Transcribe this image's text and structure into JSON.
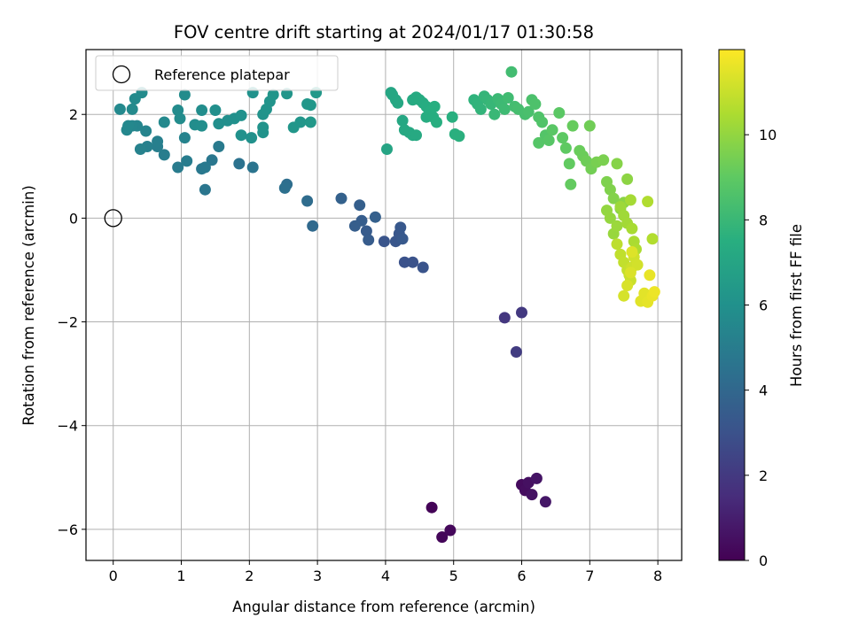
{
  "chart_data": {
    "type": "scatter",
    "title": "FOV centre drift starting at 2024/01/17 01:30:58",
    "xlabel": "Angular distance from reference (arcmin)",
    "ylabel": "Rotation from reference (arcmin)",
    "xlim": [
      -0.4,
      8.35
    ],
    "ylim": [
      -6.6,
      3.25
    ],
    "xticks": [
      0,
      1,
      2,
      3,
      4,
      5,
      6,
      7,
      8
    ],
    "yticks": [
      -6,
      -4,
      -2,
      0,
      2
    ],
    "grid": true,
    "legend": {
      "placement": "top-left",
      "entries": [
        "Reference platepar"
      ]
    },
    "reference_point": {
      "x": 0,
      "y": 0
    },
    "colorbar": {
      "label": "Hours from first FF file",
      "colormap": "viridis",
      "range": [
        0,
        12
      ],
      "ticks": [
        0,
        2,
        4,
        6,
        8,
        10
      ]
    },
    "columns": [
      "x",
      "y",
      "hours"
    ],
    "points": [
      [
        4.68,
        -5.58,
        0.1
      ],
      [
        4.83,
        -6.15,
        0.18
      ],
      [
        4.95,
        -6.02,
        0.25
      ],
      [
        6.0,
        -5.14,
        0.35
      ],
      [
        6.05,
        -5.25,
        0.42
      ],
      [
        6.1,
        -5.1,
        0.5
      ],
      [
        6.15,
        -5.33,
        0.58
      ],
      [
        6.22,
        -5.02,
        0.66
      ],
      [
        6.35,
        -5.47,
        0.74
      ],
      [
        5.75,
        -1.92,
        1.9
      ],
      [
        6.0,
        -1.82,
        2.0
      ],
      [
        5.92,
        -2.58,
        2.1
      ],
      [
        4.28,
        -0.85,
        3.0
      ],
      [
        4.4,
        -0.85,
        3.05
      ],
      [
        4.55,
        -0.95,
        3.1
      ],
      [
        3.98,
        -0.45,
        3.15
      ],
      [
        4.15,
        -0.45,
        3.2
      ],
      [
        4.2,
        -0.3,
        3.25
      ],
      [
        4.22,
        -0.18,
        3.3
      ],
      [
        4.25,
        -0.4,
        3.35
      ],
      [
        3.72,
        -0.25,
        3.4
      ],
      [
        3.75,
        -0.42,
        3.45
      ],
      [
        3.65,
        -0.05,
        3.5
      ],
      [
        3.55,
        -0.15,
        3.55
      ],
      [
        3.62,
        0.25,
        3.6
      ],
      [
        3.85,
        0.02,
        3.65
      ],
      [
        3.35,
        0.38,
        3.7
      ],
      [
        2.93,
        -0.15,
        4.1
      ],
      [
        2.85,
        0.33,
        4.2
      ],
      [
        2.55,
        0.65,
        4.3
      ],
      [
        2.52,
        0.58,
        4.4
      ],
      [
        1.85,
        1.05,
        4.5
      ],
      [
        2.05,
        0.98,
        4.6
      ],
      [
        1.35,
        0.55,
        4.7
      ],
      [
        1.45,
        1.12,
        4.75
      ],
      [
        1.3,
        0.95,
        4.8
      ],
      [
        1.35,
        0.98,
        4.85
      ],
      [
        1.55,
        1.38,
        4.9
      ],
      [
        0.95,
        0.98,
        4.95
      ],
      [
        1.08,
        1.1,
        5.0
      ],
      [
        0.75,
        1.22,
        5.05
      ],
      [
        0.65,
        1.38,
        5.1
      ],
      [
        0.65,
        1.48,
        5.15
      ],
      [
        0.5,
        1.38,
        5.2
      ],
      [
        0.4,
        1.33,
        5.25
      ],
      [
        1.05,
        1.55,
        5.3
      ],
      [
        0.48,
        1.68,
        5.35
      ],
      [
        0.35,
        1.78,
        5.4
      ],
      [
        0.28,
        1.78,
        5.45
      ],
      [
        0.2,
        1.7,
        5.5
      ],
      [
        0.22,
        1.78,
        5.55
      ],
      [
        0.75,
        1.85,
        5.6
      ],
      [
        0.1,
        2.1,
        5.62
      ],
      [
        0.28,
        2.1,
        5.65
      ],
      [
        0.32,
        2.3,
        5.68
      ],
      [
        0.42,
        2.42,
        5.7
      ],
      [
        0.95,
        2.08,
        5.72
      ],
      [
        0.98,
        1.92,
        5.75
      ],
      [
        1.05,
        2.38,
        5.78
      ],
      [
        1.3,
        2.08,
        5.8
      ],
      [
        1.2,
        1.8,
        5.82
      ],
      [
        1.3,
        1.78,
        5.85
      ],
      [
        1.5,
        2.08,
        5.88
      ],
      [
        1.55,
        1.82,
        5.9
      ],
      [
        1.68,
        1.88,
        5.92
      ],
      [
        1.78,
        1.92,
        5.95
      ],
      [
        1.88,
        1.98,
        5.98
      ],
      [
        1.88,
        1.6,
        6.0
      ],
      [
        2.03,
        1.55,
        6.02
      ],
      [
        2.05,
        2.42,
        6.05
      ],
      [
        2.2,
        1.65,
        6.08
      ],
      [
        2.2,
        1.75,
        6.1
      ],
      [
        2.2,
        2.0,
        6.12
      ],
      [
        2.25,
        2.1,
        6.15
      ],
      [
        2.3,
        2.25,
        6.18
      ],
      [
        2.35,
        2.38,
        6.2
      ],
      [
        2.55,
        2.4,
        6.22
      ],
      [
        2.65,
        1.75,
        6.25
      ],
      [
        2.75,
        1.85,
        6.28
      ],
      [
        2.85,
        2.2,
        6.3
      ],
      [
        2.9,
        2.18,
        6.32
      ],
      [
        2.9,
        1.85,
        6.35
      ],
      [
        2.98,
        2.42,
        6.38
      ],
      [
        4.02,
        1.33,
        7.0
      ],
      [
        4.08,
        2.42,
        7.05
      ],
      [
        4.1,
        2.38,
        7.08
      ],
      [
        4.15,
        2.28,
        7.1
      ],
      [
        4.18,
        2.22,
        7.13
      ],
      [
        4.25,
        1.88,
        7.15
      ],
      [
        4.28,
        1.7,
        7.18
      ],
      [
        4.35,
        1.65,
        7.2
      ],
      [
        4.4,
        1.6,
        7.23
      ],
      [
        4.45,
        1.6,
        7.25
      ],
      [
        4.4,
        2.28,
        7.28
      ],
      [
        4.45,
        2.33,
        7.3
      ],
      [
        4.5,
        2.28,
        7.33
      ],
      [
        4.55,
        2.22,
        7.35
      ],
      [
        4.6,
        2.15,
        7.38
      ],
      [
        4.6,
        1.95,
        7.4
      ],
      [
        4.65,
        2.05,
        7.43
      ],
      [
        4.7,
        1.95,
        7.45
      ],
      [
        4.72,
        2.15,
        7.48
      ],
      [
        4.75,
        1.85,
        7.5
      ],
      [
        4.98,
        1.95,
        7.53
      ],
      [
        5.02,
        1.62,
        7.55
      ],
      [
        5.08,
        1.58,
        7.58
      ],
      [
        5.3,
        2.28,
        7.7
      ],
      [
        5.35,
        2.2,
        7.75
      ],
      [
        5.4,
        2.1,
        7.8
      ],
      [
        5.45,
        2.35,
        7.85
      ],
      [
        5.5,
        2.28,
        7.9
      ],
      [
        5.55,
        2.2,
        7.95
      ],
      [
        5.6,
        2.0,
        8.0
      ],
      [
        5.65,
        2.3,
        8.05
      ],
      [
        5.7,
        2.2,
        8.1
      ],
      [
        5.75,
        2.1,
        8.15
      ],
      [
        5.8,
        2.32,
        8.2
      ],
      [
        5.85,
        2.82,
        8.25
      ],
      [
        5.9,
        2.15,
        8.3
      ],
      [
        5.95,
        2.1,
        8.35
      ],
      [
        6.05,
        2.0,
        8.4
      ],
      [
        6.1,
        2.05,
        8.45
      ],
      [
        6.15,
        2.28,
        8.5
      ],
      [
        6.2,
        2.2,
        8.55
      ],
      [
        6.25,
        1.95,
        8.6
      ],
      [
        6.3,
        1.85,
        8.65
      ],
      [
        6.35,
        1.6,
        8.7
      ],
      [
        6.25,
        1.45,
        8.75
      ],
      [
        6.4,
        1.5,
        8.8
      ],
      [
        6.45,
        1.7,
        8.85
      ],
      [
        6.55,
        2.03,
        8.9
      ],
      [
        6.6,
        1.55,
        8.95
      ],
      [
        6.65,
        1.35,
        9.0
      ],
      [
        6.7,
        1.05,
        9.05
      ],
      [
        6.72,
        0.65,
        9.1
      ],
      [
        6.75,
        1.78,
        9.15
      ],
      [
        6.85,
        1.3,
        9.2
      ],
      [
        6.9,
        1.2,
        9.25
      ],
      [
        6.95,
        1.1,
        9.3
      ],
      [
        7.0,
        1.78,
        9.35
      ],
      [
        7.02,
        0.95,
        9.4
      ],
      [
        7.1,
        1.08,
        9.5
      ],
      [
        7.2,
        1.12,
        9.55
      ],
      [
        7.25,
        0.7,
        9.6
      ],
      [
        7.3,
        0.55,
        9.65
      ],
      [
        7.35,
        0.38,
        9.7
      ],
      [
        7.4,
        1.05,
        9.75
      ],
      [
        7.45,
        0.18,
        9.8
      ],
      [
        7.5,
        0.3,
        9.85
      ],
      [
        7.55,
        0.75,
        9.9
      ],
      [
        7.25,
        0.15,
        10.0
      ],
      [
        7.3,
        0.0,
        10.05
      ],
      [
        7.35,
        -0.3,
        10.1
      ],
      [
        7.4,
        -0.15,
        10.15
      ],
      [
        7.45,
        0.22,
        10.2
      ],
      [
        7.5,
        0.05,
        10.25
      ],
      [
        7.55,
        -0.1,
        10.3
      ],
      [
        7.6,
        0.35,
        10.35
      ],
      [
        7.62,
        -0.2,
        10.4
      ],
      [
        7.65,
        -0.45,
        10.45
      ],
      [
        7.68,
        -0.6,
        10.5
      ],
      [
        7.85,
        0.32,
        10.55
      ],
      [
        7.92,
        -0.4,
        10.6
      ],
      [
        7.4,
        -0.5,
        10.8
      ],
      [
        7.45,
        -0.7,
        10.85
      ],
      [
        7.5,
        -0.85,
        10.9
      ],
      [
        7.55,
        -1.0,
        10.95
      ],
      [
        7.58,
        -1.1,
        11.0
      ],
      [
        7.6,
        -1.2,
        11.05
      ],
      [
        7.62,
        -0.95,
        11.1
      ],
      [
        7.65,
        -0.75,
        11.15
      ],
      [
        7.7,
        -0.9,
        11.2
      ],
      [
        7.5,
        -1.5,
        11.25
      ],
      [
        7.55,
        -1.3,
        11.3
      ],
      [
        7.6,
        -1.05,
        11.35
      ],
      [
        7.62,
        -0.65,
        11.4
      ],
      [
        7.75,
        -1.6,
        11.45
      ],
      [
        7.8,
        -1.45,
        11.5
      ],
      [
        7.85,
        -1.62,
        11.55
      ],
      [
        7.88,
        -1.1,
        11.6
      ],
      [
        7.92,
        -1.5,
        11.65
      ],
      [
        7.95,
        -1.42,
        11.7
      ]
    ]
  }
}
